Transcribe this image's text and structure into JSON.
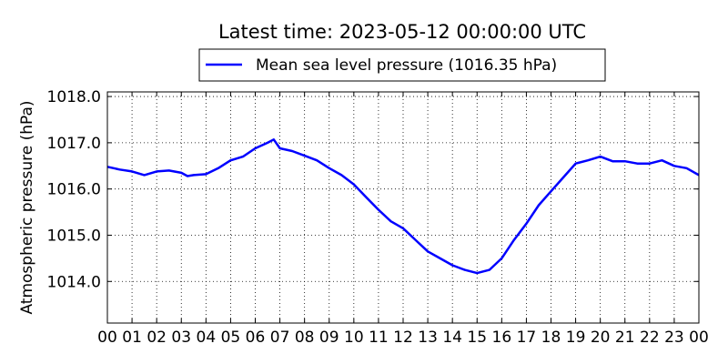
{
  "chart_data": {
    "type": "line",
    "title": "Latest time: 2023-05-12 00:00:00 UTC",
    "ylabel": "Atmospheric pressure (hPa)",
    "xlabel": "",
    "xlim": [
      0,
      24
    ],
    "ylim": [
      1013.1,
      1018.1
    ],
    "grid": true,
    "legend_position": "top-center",
    "x_tick_labels": [
      "00",
      "01",
      "02",
      "03",
      "04",
      "05",
      "06",
      "07",
      "08",
      "09",
      "10",
      "11",
      "12",
      "13",
      "14",
      "15",
      "16",
      "17",
      "18",
      "19",
      "20",
      "21",
      "22",
      "23",
      "00"
    ],
    "y_ticks": [
      1014.0,
      1015.0,
      1016.0,
      1017.0,
      1018.0
    ],
    "y_tick_labels": [
      "1014.0",
      "1015.0",
      "1016.0",
      "1017.0",
      "1018.0"
    ],
    "series": [
      {
        "name": "Mean sea level pressure (1016.35 hPa)",
        "color": "#0000ff",
        "x": [
          0,
          0.5,
          1,
          1.5,
          2,
          2.5,
          3,
          3.25,
          3.5,
          4,
          4.5,
          5,
          5.5,
          6,
          6.5,
          6.75,
          7,
          7.5,
          8,
          8.5,
          9,
          9.5,
          10,
          10.5,
          11,
          11.5,
          12,
          12.5,
          13,
          13.5,
          14,
          14.5,
          15,
          15.5,
          16,
          16.5,
          17,
          17.5,
          18,
          18.5,
          19,
          19.5,
          20,
          20.5,
          21,
          21.5,
          22,
          22.5,
          23,
          23.5,
          24
        ],
        "y": [
          1016.48,
          1016.42,
          1016.38,
          1016.3,
          1016.38,
          1016.4,
          1016.35,
          1016.28,
          1016.3,
          1016.32,
          1016.45,
          1016.62,
          1016.7,
          1016.88,
          1017.0,
          1017.07,
          1016.88,
          1016.82,
          1016.72,
          1016.62,
          1016.45,
          1016.3,
          1016.1,
          1015.82,
          1015.55,
          1015.3,
          1015.15,
          1014.9,
          1014.65,
          1014.5,
          1014.35,
          1014.25,
          1014.18,
          1014.25,
          1014.5,
          1014.9,
          1015.25,
          1015.65,
          1015.95,
          1016.25,
          1016.55,
          1016.62,
          1016.7,
          1016.6,
          1016.6,
          1016.55,
          1016.55,
          1016.62,
          1016.5,
          1016.45,
          1016.3
        ]
      }
    ]
  }
}
